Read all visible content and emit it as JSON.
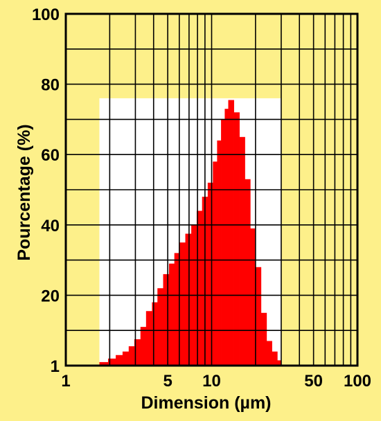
{
  "chart_data": {
    "type": "bar",
    "xlabel": "Dimension  (µm)",
    "ylabel": "Pourcentage  (%)",
    "xscale": "log",
    "xlim": [
      1,
      100
    ],
    "ylim": [
      0,
      100
    ],
    "grid": true,
    "x_ticks": [
      {
        "value": 1,
        "label": "1"
      },
      {
        "value": 5,
        "label": "5"
      },
      {
        "value": 10,
        "label": "10"
      },
      {
        "value": 50,
        "label": "50"
      },
      {
        "value": 100,
        "label": "100"
      }
    ],
    "y_ticks": [
      {
        "value": 1,
        "label": "1"
      },
      {
        "value": 20,
        "label": "20"
      },
      {
        "value": 40,
        "label": "40"
      },
      {
        "value": 60,
        "label": "60"
      },
      {
        "value": 80,
        "label": "80"
      },
      {
        "value": 100,
        "label": "100"
      }
    ],
    "sample_range": [
      1.7,
      30
    ],
    "colors": {
      "background": "#fdf08a",
      "sample_area": "#ffffff",
      "bars": "#ff0000",
      "grid": "#000000"
    },
    "bins": [
      {
        "x0": 1.7,
        "x1": 1.95,
        "value": 1.0
      },
      {
        "x0": 1.95,
        "x1": 2.2,
        "value": 2.0
      },
      {
        "x0": 2.2,
        "x1": 2.45,
        "value": 3.0
      },
      {
        "x0": 2.45,
        "x1": 2.7,
        "value": 4.0
      },
      {
        "x0": 2.7,
        "x1": 2.95,
        "value": 5.5
      },
      {
        "x0": 2.95,
        "x1": 3.25,
        "value": 7.5
      },
      {
        "x0": 3.25,
        "x1": 3.55,
        "value": 11.0
      },
      {
        "x0": 3.55,
        "x1": 3.9,
        "value": 15.5
      },
      {
        "x0": 3.9,
        "x1": 4.25,
        "value": 18.0
      },
      {
        "x0": 4.25,
        "x1": 4.65,
        "value": 22.0
      },
      {
        "x0": 4.65,
        "x1": 5.1,
        "value": 26.0
      },
      {
        "x0": 5.1,
        "x1": 5.55,
        "value": 29.0
      },
      {
        "x0": 5.55,
        "x1": 6.05,
        "value": 32.0
      },
      {
        "x0": 6.05,
        "x1": 6.6,
        "value": 35.0
      },
      {
        "x0": 6.6,
        "x1": 7.25,
        "value": 37.5
      },
      {
        "x0": 7.25,
        "x1": 7.9,
        "value": 40.0
      },
      {
        "x0": 7.9,
        "x1": 8.6,
        "value": 44.0
      },
      {
        "x0": 8.6,
        "x1": 9.4,
        "value": 48.0
      },
      {
        "x0": 9.4,
        "x1": 10.2,
        "value": 52.0
      },
      {
        "x0": 10.2,
        "x1": 10.9,
        "value": 58.0
      },
      {
        "x0": 10.9,
        "x1": 11.6,
        "value": 64.0
      },
      {
        "x0": 11.6,
        "x1": 12.3,
        "value": 70.0
      },
      {
        "x0": 12.3,
        "x1": 13.0,
        "value": 73.0
      },
      {
        "x0": 13.0,
        "x1": 14.2,
        "value": 75.5
      },
      {
        "x0": 14.2,
        "x1": 15.5,
        "value": 72.0
      },
      {
        "x0": 15.5,
        "x1": 16.9,
        "value": 65.0
      },
      {
        "x0": 16.9,
        "x1": 18.4,
        "value": 53.0
      },
      {
        "x0": 18.4,
        "x1": 20.0,
        "value": 39.0
      },
      {
        "x0": 20.0,
        "x1": 21.8,
        "value": 28.0
      },
      {
        "x0": 21.8,
        "x1": 23.8,
        "value": 15.0
      },
      {
        "x0": 23.8,
        "x1": 25.9,
        "value": 7.0
      },
      {
        "x0": 25.9,
        "x1": 28.2,
        "value": 4.0
      },
      {
        "x0": 28.2,
        "x1": 30.0,
        "value": 1.5
      }
    ]
  }
}
